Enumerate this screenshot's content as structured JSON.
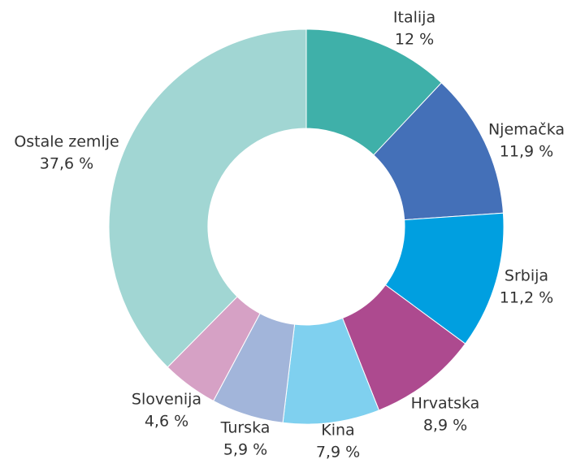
{
  "chart_data": {
    "type": "donut",
    "categories": [
      "Italija",
      "Njemačka",
      "Srbija",
      "Hrvatska",
      "Kina",
      "Turska",
      "Slovenija",
      "Ostale zemlje"
    ],
    "values": [
      12,
      11.9,
      11.2,
      8.9,
      7.9,
      5.9,
      4.6,
      37.6
    ],
    "value_labels": [
      "12 %",
      "11,9 %",
      "11,2 %",
      "8,9 %",
      "7,9 %",
      "5,9 %",
      "4,6 %",
      "37,6 %"
    ],
    "colors": [
      "#3fb0a9",
      "#4470b8",
      "#009fe0",
      "#ad4a8f",
      "#7fd0ef",
      "#a2b5da",
      "#d6a1c5",
      "#a1d6d3"
    ]
  }
}
